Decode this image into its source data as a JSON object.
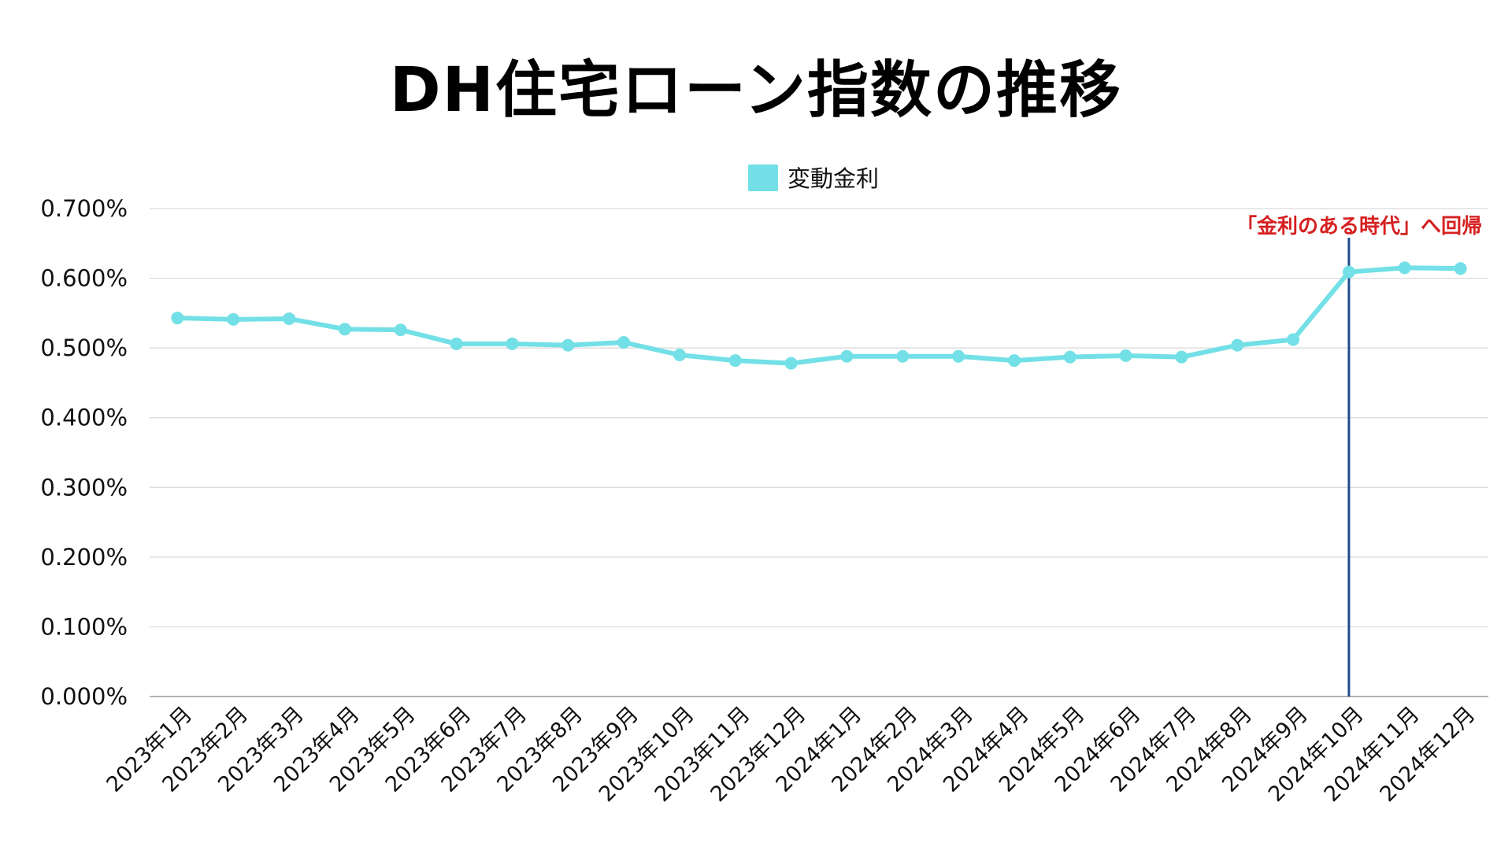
{
  "chart_data": {
    "type": "line",
    "title": "DH住宅ローン指数の推移",
    "xlabel": "",
    "ylabel": "",
    "ylim": [
      0,
      0.7
    ],
    "y_tick_values": [
      0,
      0.1,
      0.2,
      0.3,
      0.4,
      0.5,
      0.6,
      0.7
    ],
    "y_tick_labels": [
      "0.000%",
      "0.100%",
      "0.200%",
      "0.300%",
      "0.400%",
      "0.500%",
      "0.600%",
      "0.700%"
    ],
    "grid": true,
    "legend_position": "top-center",
    "categories": [
      "2023年1月",
      "2023年2月",
      "2023年3月",
      "2023年4月",
      "2023年5月",
      "2023年6月",
      "2023年7月",
      "2023年8月",
      "2023年9月",
      "2023年10月",
      "2023年11月",
      "2023年12月",
      "2024年1月",
      "2024年2月",
      "2024年3月",
      "2024年4月",
      "2024年5月",
      "2024年6月",
      "2024年7月",
      "2024年8月",
      "2024年9月",
      "2024年10月",
      "2024年11月",
      "2024年12月"
    ],
    "series": [
      {
        "name": "変動金利",
        "color": "#72E0E6",
        "values": [
          0.543,
          0.541,
          0.542,
          0.527,
          0.526,
          0.506,
          0.506,
          0.504,
          0.508,
          0.49,
          0.482,
          0.478,
          0.488,
          0.488,
          0.488,
          0.482,
          0.487,
          0.489,
          0.487,
          0.504,
          0.512,
          0.609,
          0.615,
          0.614
        ]
      }
    ],
    "annotation": {
      "text": "「金利のある時代」へ回帰",
      "category": "2024年10月",
      "text_color": "#D62020",
      "line_color": "#1F4E8C"
    }
  }
}
